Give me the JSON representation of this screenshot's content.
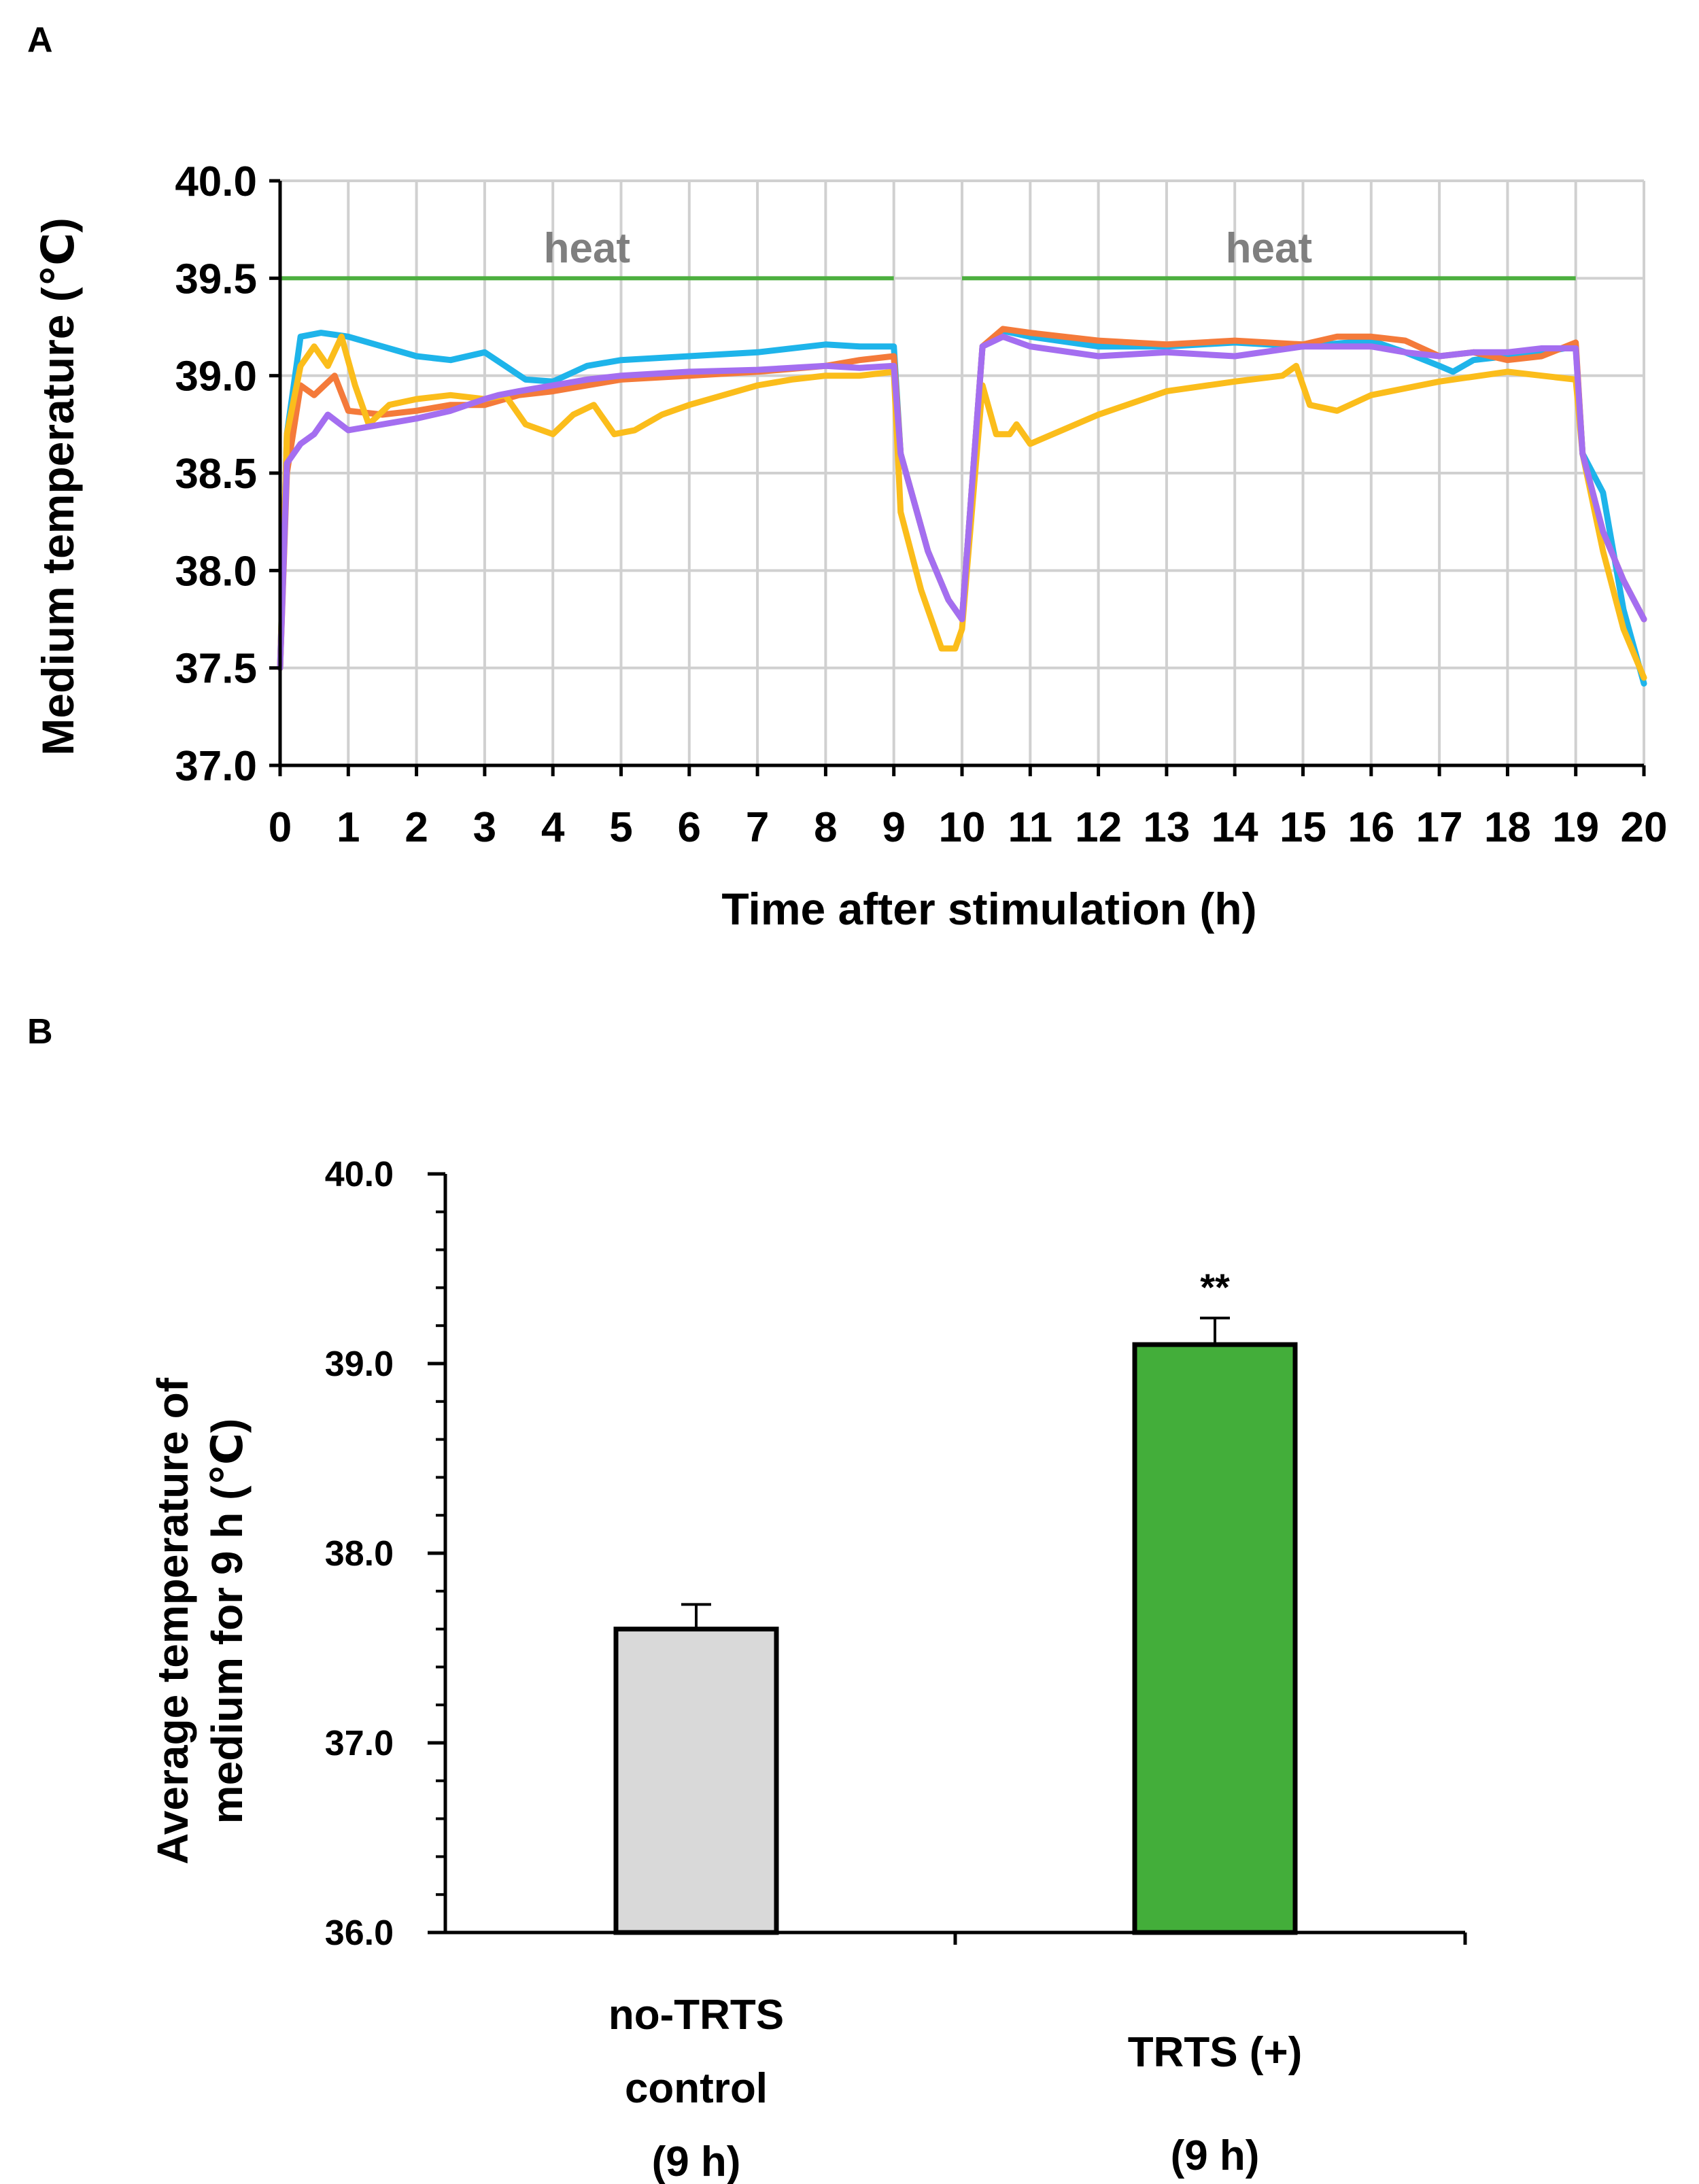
{
  "chart_data": [
    {
      "panel": "A",
      "type": "line",
      "xlabel": "Time after stimulation (h)",
      "ylabel": "Medium temperature (℃)",
      "xlim": [
        0,
        20
      ],
      "ylim": [
        37.0,
        40.0
      ],
      "x_ticks": [
        "0",
        "1",
        "2",
        "3",
        "4",
        "5",
        "6",
        "7",
        "8",
        "9",
        "10",
        "11",
        "12",
        "13",
        "14",
        "15",
        "16",
        "17",
        "18",
        "19",
        "20"
      ],
      "y_ticks": [
        "37.0",
        "37.5",
        "38.0",
        "38.5",
        "39.0",
        "39.5",
        "40.0"
      ],
      "grid": true,
      "annotations": [
        {
          "label": "heat",
          "x_start": 0,
          "x_end": 9,
          "y": 39.5,
          "color": "#4caf3e"
        },
        {
          "label": "heat",
          "x_start": 10,
          "x_end": 19,
          "y": 39.5,
          "color": "#4caf3e"
        }
      ],
      "series": [
        {
          "name": "blue",
          "color": "#1eb4ea",
          "x": [
            0,
            0.1,
            0.3,
            0.6,
            1,
            1.5,
            2,
            2.5,
            3,
            3.3,
            3.6,
            4,
            4.5,
            5,
            6,
            7,
            8,
            8.5,
            9,
            9.1,
            9.5,
            9.8,
            10,
            10.3,
            10.6,
            11,
            12,
            13,
            14,
            15,
            16,
            16.5,
            17,
            17.2,
            17.5,
            18,
            18.5,
            19,
            19.1,
            19.4,
            19.7,
            20
          ],
          "y": [
            37.5,
            38.7,
            39.2,
            39.22,
            39.2,
            39.15,
            39.1,
            39.08,
            39.12,
            39.05,
            38.98,
            38.97,
            39.05,
            39.08,
            39.1,
            39.12,
            39.16,
            39.15,
            39.15,
            38.6,
            38.1,
            37.85,
            37.75,
            39.15,
            39.23,
            39.2,
            39.15,
            39.15,
            39.17,
            39.15,
            39.18,
            39.12,
            39.05,
            39.02,
            39.08,
            39.1,
            39.12,
            39.15,
            38.6,
            38.4,
            37.8,
            37.42
          ]
        },
        {
          "name": "orange",
          "color": "#f47a3a",
          "x": [
            0,
            0.1,
            0.3,
            0.5,
            0.8,
            1,
            1.5,
            2,
            2.5,
            3,
            3.5,
            4,
            4.5,
            5,
            6,
            7,
            8,
            8.5,
            9,
            9.1,
            9.5,
            9.8,
            10,
            10.3,
            10.6,
            11,
            12,
            13,
            14,
            15,
            15.5,
            16,
            16.5,
            17,
            17.5,
            18,
            18.5,
            19,
            19.1,
            19.4,
            19.7,
            20
          ],
          "y": [
            37.5,
            38.5,
            38.95,
            38.9,
            39.0,
            38.82,
            38.8,
            38.82,
            38.85,
            38.85,
            38.9,
            38.92,
            38.95,
            38.98,
            39.0,
            39.02,
            39.05,
            39.08,
            39.1,
            38.6,
            38.1,
            37.85,
            37.75,
            39.15,
            39.24,
            39.22,
            39.18,
            39.16,
            39.18,
            39.16,
            39.2,
            39.2,
            39.18,
            39.1,
            39.12,
            39.08,
            39.1,
            39.17,
            38.6,
            38.2,
            37.95,
            37.75
          ]
        },
        {
          "name": "yellow",
          "color": "#fbbd1b",
          "x": [
            0,
            0.1,
            0.3,
            0.5,
            0.7,
            0.9,
            1.1,
            1.3,
            1.6,
            2,
            2.5,
            3,
            3.3,
            3.6,
            4,
            4.3,
            4.6,
            4.9,
            5.2,
            5.6,
            6,
            6.5,
            7,
            7.5,
            8,
            8.5,
            9,
            9.1,
            9.4,
            9.7,
            9.9,
            10,
            10.3,
            10.5,
            10.7,
            10.8,
            11,
            12,
            13,
            14,
            14.7,
            14.9,
            15.1,
            15.5,
            16,
            17,
            18,
            18.5,
            19,
            19.1,
            19.4,
            19.7,
            20
          ],
          "y": [
            37.5,
            38.7,
            39.05,
            39.15,
            39.05,
            39.2,
            38.95,
            38.75,
            38.85,
            38.88,
            38.9,
            38.88,
            38.9,
            38.75,
            38.7,
            38.8,
            38.85,
            38.7,
            38.72,
            38.8,
            38.85,
            38.9,
            38.95,
            38.98,
            39.0,
            39.0,
            39.02,
            38.3,
            37.9,
            37.6,
            37.6,
            37.7,
            38.95,
            38.7,
            38.7,
            38.75,
            38.65,
            38.8,
            38.92,
            38.97,
            39.0,
            39.05,
            38.85,
            38.82,
            38.9,
            38.97,
            39.02,
            39.0,
            38.98,
            38.6,
            38.1,
            37.7,
            37.45
          ]
        },
        {
          "name": "purple",
          "color": "#a46ef0",
          "x": [
            0,
            0.1,
            0.3,
            0.5,
            0.7,
            1,
            1.5,
            2,
            2.5,
            3,
            3.2,
            3.5,
            4,
            4.5,
            5,
            6,
            7,
            8,
            8.5,
            9,
            9.1,
            9.5,
            9.8,
            10,
            10.3,
            10.6,
            11,
            12,
            13,
            14,
            15,
            16,
            16.5,
            17,
            17.5,
            18,
            18.5,
            19,
            19.1,
            19.4,
            19.7,
            20
          ],
          "y": [
            37.5,
            38.55,
            38.65,
            38.7,
            38.8,
            38.72,
            38.75,
            38.78,
            38.82,
            38.88,
            38.9,
            38.92,
            38.95,
            38.98,
            39.0,
            39.02,
            39.03,
            39.05,
            39.04,
            39.05,
            38.6,
            38.1,
            37.85,
            37.75,
            39.15,
            39.2,
            39.15,
            39.1,
            39.12,
            39.1,
            39.15,
            39.15,
            39.12,
            39.1,
            39.12,
            39.12,
            39.14,
            39.14,
            38.6,
            38.2,
            37.95,
            37.75
          ]
        }
      ]
    },
    {
      "panel": "B",
      "type": "bar",
      "ylabel": "Average temperature of medium for 9 h (℃)",
      "ylabel_lines": [
        "Average  temperature of",
        "medium for 9 h (℃)"
      ],
      "ylim": [
        36.0,
        40.0
      ],
      "y_ticks": [
        "36.0",
        "37.0",
        "38.0",
        "39.0",
        "40.0"
      ],
      "categories": [
        {
          "lines": [
            "no-TRTS",
            "control",
            "(9 h)"
          ]
        },
        {
          "lines": [
            "TRTS (+)",
            "(9 h)"
          ]
        }
      ],
      "values": [
        37.6,
        39.1
      ],
      "errors": [
        0.13,
        0.14
      ],
      "colors": [
        "#d9d9d9",
        "#43ae3a"
      ],
      "significance": [
        "",
        "**"
      ]
    }
  ],
  "panel_labels": {
    "a": "A",
    "b": "B"
  }
}
